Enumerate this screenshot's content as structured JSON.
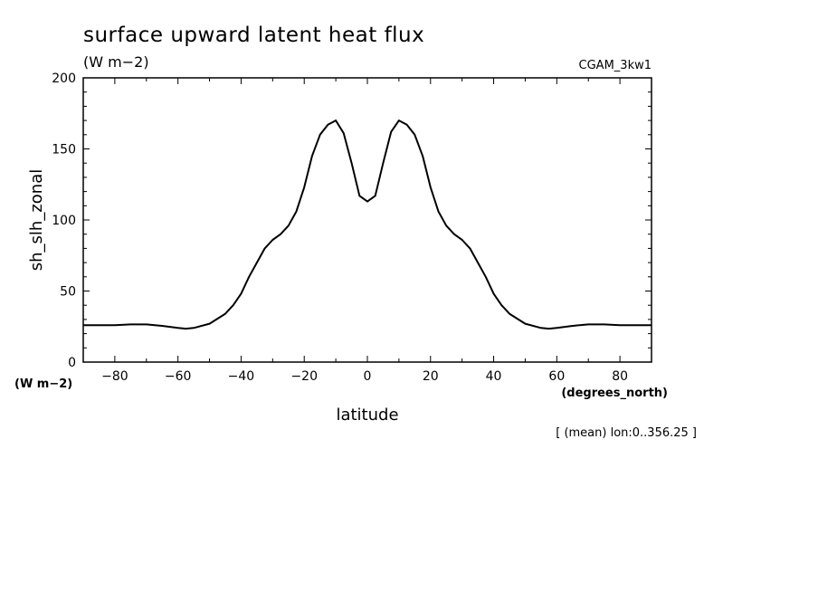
{
  "chart_data": {
    "type": "line",
    "title": "surface upward latent heat flux",
    "subtitle": "(W m−2)",
    "dataset_label": "CGAM_3kw1",
    "ylabel": "sh_slh_zonal",
    "y_units": "(W m−2)",
    "xlabel": "latitude",
    "x_units": "(degrees_north)",
    "footnote": "[ (mean) lon:0..356.25 ]",
    "xlim": [
      -90,
      90
    ],
    "ylim": [
      0,
      200
    ],
    "x_ticks": [
      -80,
      -60,
      -40,
      -20,
      0,
      20,
      40,
      60,
      80
    ],
    "y_ticks": [
      0,
      50,
      100,
      150,
      200
    ],
    "grid": false,
    "line_color": "#000000",
    "series": [
      {
        "x": [
          -90,
          -85,
          -80,
          -75,
          -70,
          -65,
          -60,
          -57.5,
          -55,
          -50,
          -45,
          -42.5,
          -40,
          -37.5,
          -35,
          -32.5,
          -30,
          -27.5,
          -25,
          -22.5,
          -20,
          -17.5,
          -15,
          -12.5,
          -10,
          -7.5,
          -5,
          -2.5,
          0,
          2.5,
          5,
          7.5,
          10,
          12.5,
          15,
          17.5,
          20,
          22.5,
          25,
          27.5,
          30,
          32.5,
          35,
          37.5,
          40,
          42.5,
          45,
          50,
          55,
          57.5,
          60,
          65,
          70,
          75,
          80,
          85,
          90
        ],
        "y": [
          26,
          26,
          26,
          26.5,
          26.5,
          25.5,
          24,
          23.5,
          24,
          27,
          34,
          40,
          48,
          60,
          70,
          80,
          86,
          90,
          96,
          106,
          123,
          145,
          160,
          167,
          170,
          161,
          140,
          117,
          113,
          117,
          140,
          162,
          170,
          167,
          160,
          145,
          123,
          106,
          96,
          90,
          86,
          80,
          70,
          60,
          48,
          40,
          34,
          27,
          24,
          23.5,
          24,
          25.5,
          26.5,
          26.5,
          26,
          26,
          26
        ]
      }
    ]
  }
}
